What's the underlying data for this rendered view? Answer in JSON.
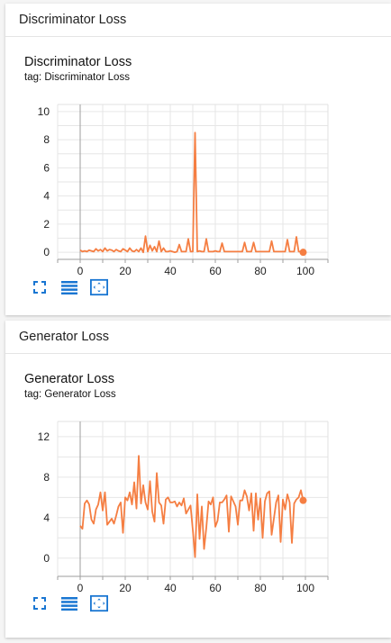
{
  "colors": {
    "accent": "#f57e42",
    "icon": "#1976d2"
  },
  "sections": [
    {
      "header": "Discriminator Loss",
      "card": {
        "title": "Discriminator Loss",
        "tag": "tag: Discriminator Loss",
        "toolbar": [
          "fullscreen-icon",
          "list-lines-icon",
          "fit-domain-icon"
        ]
      }
    },
    {
      "header": "Generator Loss",
      "card": {
        "title": "Generator Loss",
        "tag": "tag: Generator Loss",
        "toolbar": [
          "fullscreen-icon",
          "list-lines-icon",
          "fit-domain-icon"
        ]
      }
    }
  ],
  "chart_data": [
    {
      "type": "line",
      "title": "Discriminator Loss",
      "xlim": [
        -10,
        110
      ],
      "ylim": [
        -0.5,
        10.5
      ],
      "x_ticks": [
        0,
        20,
        40,
        60,
        80,
        100
      ],
      "y_ticks": [
        0,
        2,
        4,
        6,
        8,
        10
      ],
      "grid": true,
      "series": [
        {
          "x": [
            0,
            1,
            2,
            3,
            4,
            5,
            6,
            7,
            8,
            9,
            10,
            11,
            12,
            13,
            14,
            15,
            16,
            17,
            18,
            19,
            20,
            21,
            22,
            23,
            24,
            25,
            26,
            27,
            28,
            29,
            30,
            31,
            32,
            33,
            34,
            35,
            36,
            37,
            38,
            39,
            40,
            41,
            42,
            43,
            44,
            45,
            46,
            47,
            48,
            49,
            50,
            51,
            52,
            53,
            54,
            55,
            56,
            57,
            58,
            59,
            60,
            61,
            62,
            63,
            64,
            65,
            66,
            67,
            68,
            69,
            70,
            71,
            72,
            73,
            74,
            75,
            76,
            77,
            78,
            79,
            80,
            81,
            82,
            83,
            84,
            85,
            86,
            87,
            88,
            89,
            90,
            91,
            92,
            93,
            94,
            95,
            96,
            97,
            98,
            99
          ],
          "y": [
            0.15,
            0.05,
            0.1,
            0.05,
            0.15,
            0.1,
            0.05,
            0.25,
            0.1,
            0.2,
            0.05,
            0.3,
            0.1,
            0.2,
            0.15,
            0.05,
            0.2,
            0.1,
            0.05,
            0.25,
            0.15,
            0.05,
            0.3,
            0.1,
            0.05,
            0.2,
            0.05,
            0.3,
            0.0,
            1.15,
            0.05,
            0.5,
            0.1,
            0.4,
            0.05,
            0.8,
            0.05,
            0.3,
            0.05,
            0.05,
            0.1,
            0.05,
            0.0,
            0.05,
            0.55,
            0.05,
            0.05,
            0.05,
            0.95,
            0.05,
            0.05,
            8.5,
            0.05,
            0.1,
            0.05,
            0.05,
            0.95,
            0.05,
            0.05,
            0.05,
            0.1,
            0.05,
            0.05,
            0.65,
            0.05,
            0.05,
            0.05,
            0.05,
            0.05,
            0.05,
            0.05,
            0.05,
            0.05,
            0.7,
            0.05,
            0.05,
            0.05,
            0.7,
            0.05,
            0.05,
            0.05,
            0.05,
            0.05,
            0.05,
            0.05,
            0.8,
            0.05,
            0.05,
            0.05,
            0.05,
            0.05,
            0.05,
            0.9,
            0.05,
            0.05,
            0.05,
            1.1,
            0.05,
            0.05,
            0.0
          ]
        }
      ]
    },
    {
      "type": "line",
      "title": "Generator Loss",
      "xlim": [
        -10,
        110
      ],
      "ylim": [
        -1.8,
        13.5
      ],
      "x_ticks": [
        0,
        20,
        40,
        60,
        80,
        100
      ],
      "y_ticks": [
        0,
        4,
        8,
        12
      ],
      "grid": true,
      "series": [
        {
          "x": [
            0,
            1,
            2,
            3,
            4,
            5,
            6,
            7,
            8,
            9,
            10,
            11,
            12,
            13,
            14,
            15,
            16,
            17,
            18,
            19,
            20,
            21,
            22,
            23,
            24,
            25,
            26,
            27,
            28,
            29,
            30,
            31,
            32,
            33,
            34,
            35,
            36,
            37,
            38,
            39,
            40,
            41,
            42,
            43,
            44,
            45,
            46,
            47,
            48,
            49,
            50,
            51,
            52,
            53,
            54,
            55,
            56,
            57,
            58,
            59,
            60,
            61,
            62,
            63,
            64,
            65,
            66,
            67,
            68,
            69,
            70,
            71,
            72,
            73,
            74,
            75,
            76,
            77,
            78,
            79,
            80,
            81,
            82,
            83,
            84,
            85,
            86,
            87,
            88,
            89,
            90,
            91,
            92,
            93,
            94,
            95,
            96,
            97,
            98,
            99
          ],
          "y": [
            3.2,
            2.9,
            5.4,
            5.7,
            5.3,
            3.8,
            3.4,
            4.8,
            5.3,
            6.5,
            4.7,
            6.5,
            3.3,
            3.6,
            3.9,
            3.4,
            4.2,
            5.1,
            5.5,
            2.5,
            6.0,
            5.7,
            6.5,
            5.3,
            7.5,
            4.9,
            10.1,
            5.4,
            7.2,
            5.5,
            4.8,
            7.6,
            4.6,
            3.6,
            8.4,
            5.5,
            5.2,
            3.4,
            5.8,
            6.0,
            5.5,
            5.5,
            5.6,
            5.1,
            5.5,
            5.2,
            5.9,
            4.4,
            4.8,
            5.2,
            2.8,
            0.1,
            6.3,
            1.9,
            5.1,
            0.9,
            3.0,
            5.6,
            5.3,
            6.0,
            3.1,
            3.7,
            5.5,
            5.5,
            5.8,
            6.2,
            2.6,
            6.1,
            5.6,
            5.1,
            3.3,
            5.7,
            5.7,
            6.7,
            6.1,
            4.7,
            6.4,
            2.7,
            6.4,
            3.8,
            5.9,
            2.0,
            5.6,
            6.4,
            6.6,
            2.3,
            3.9,
            5.5,
            6.2,
            1.6,
            5.8,
            4.8,
            6.3,
            5.5,
            1.5,
            5.4,
            5.8,
            6.0,
            6.7,
            5.7
          ]
        }
      ]
    }
  ]
}
